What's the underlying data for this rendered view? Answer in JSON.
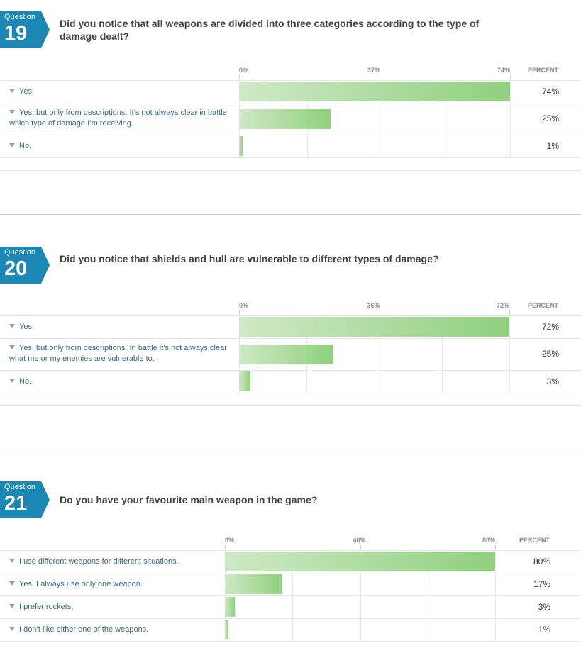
{
  "questions": [
    {
      "badge_label": "Question",
      "number": "19",
      "title": "Did you notice that all weapons are divided into three categories according to the type of damage dealt?",
      "ticks": [
        "0%",
        "37%",
        "74%"
      ],
      "percent_header": "PERCENT",
      "rows": [
        {
          "label": "Yes.",
          "percent": "74%"
        },
        {
          "label": "Yes, but only from descriptions. It’s not always clear in battle which type of damage I’m receiving.",
          "percent": "25%"
        },
        {
          "label": "No.",
          "percent": "1%"
        }
      ]
    },
    {
      "badge_label": "Question",
      "number": "20",
      "title": "Did you notice that shields and hull are vulnerable to different types of damage?",
      "ticks": [
        "0%",
        "36%",
        "72%"
      ],
      "percent_header": "PERCENT",
      "rows": [
        {
          "label": "Yes.",
          "percent": "72%"
        },
        {
          "label": "Yes, but only from descriptions. In battle it’s not always clear what me or my enemies are vulnerable to.",
          "percent": "25%"
        },
        {
          "label": "No.",
          "percent": "3%"
        }
      ]
    },
    {
      "badge_label": "Question",
      "number": "21",
      "title": "Do you have your favourite main weapon in the game?",
      "ticks": [
        "0%",
        "40%",
        "80%"
      ],
      "percent_header": "PERCENT",
      "rows": [
        {
          "label": "I use different weapons for different situations.",
          "percent": "80%"
        },
        {
          "label": "Yes, I always use only one weapon.",
          "percent": "17%"
        },
        {
          "label": "I prefer rockets.",
          "percent": "3%"
        },
        {
          "label": "I don’t like either one of the weapons.",
          "percent": "1%"
        }
      ]
    }
  ],
  "chart_data": [
    {
      "type": "bar",
      "orientation": "horizontal",
      "title": "Did you notice that all weapons are divided into three categories according to the type of damage dealt?",
      "categories": [
        "Yes.",
        "Yes, but only from descriptions. It’s not always clear in battle which type of damage I’m receiving.",
        "No."
      ],
      "values": [
        74,
        25,
        1
      ],
      "xlim": [
        0,
        74
      ],
      "xlabel": "PERCENT",
      "grid": true,
      "bar_color": "#8fd07e"
    },
    {
      "type": "bar",
      "orientation": "horizontal",
      "title": "Did you notice that shields and hull are vulnerable to different types of damage?",
      "categories": [
        "Yes.",
        "Yes, but only from descriptions. In battle it’s not always clear what me or my enemies are vulnerable to.",
        "No."
      ],
      "values": [
        72,
        25,
        3
      ],
      "xlim": [
        0,
        72
      ],
      "xlabel": "PERCENT",
      "grid": true,
      "bar_color": "#8fd07e"
    },
    {
      "type": "bar",
      "orientation": "horizontal",
      "title": "Do you have your favourite main weapon in the game?",
      "categories": [
        "I use different weapons for different situations.",
        "Yes, I always use only one weapon.",
        "I prefer rockets.",
        "I don’t like either one of the weapons."
      ],
      "values": [
        80,
        17,
        3,
        1
      ],
      "xlim": [
        0,
        80
      ],
      "xlabel": "PERCENT",
      "grid": true,
      "bar_color": "#8fd07e"
    }
  ],
  "colors": {
    "badge": "#1b87b4",
    "bar_start": "#cfe9c6",
    "bar_end": "#8fd07e",
    "label_text": "#3a6a87"
  }
}
